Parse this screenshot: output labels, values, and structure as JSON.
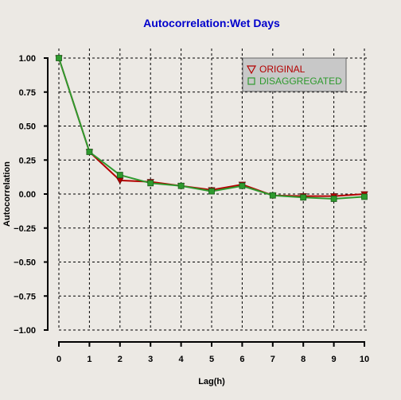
{
  "chart_data": {
    "type": "line",
    "title": "Autocorrelation:Wet Days",
    "xlabel": "Lag(h)",
    "ylabel": "Autocorrelation",
    "x": [
      0,
      1,
      2,
      3,
      4,
      5,
      6,
      7,
      8,
      9,
      10
    ],
    "xticks": [
      "0",
      "1",
      "2",
      "3",
      "4",
      "5",
      "6",
      "7",
      "8",
      "9",
      "10"
    ],
    "yticks": [
      "1.00",
      "0.75",
      "0.50",
      "0.25",
      "0.00",
      "−0.25",
      "−0.50",
      "−0.75",
      "−1.00"
    ],
    "xlim": [
      0,
      10
    ],
    "ylim": [
      -1.0,
      1.0
    ],
    "grid": true,
    "legend_position": "top-right",
    "series": [
      {
        "name": "ORIGINAL",
        "color": "#b30000",
        "marker": "triangle-down",
        "values": [
          1.0,
          0.31,
          0.1,
          0.09,
          0.06,
          0.03,
          0.07,
          -0.01,
          -0.015,
          -0.015,
          0.0
        ]
      },
      {
        "name": "DISAGGREGATED",
        "color": "#2e9a2e",
        "marker": "square",
        "values": [
          1.0,
          0.31,
          0.14,
          0.08,
          0.06,
          0.02,
          0.06,
          -0.01,
          -0.025,
          -0.035,
          -0.02
        ]
      }
    ]
  },
  "colors": {
    "background": "#ece9e4",
    "title": "#0000cc",
    "legend_box": "#c8c8c8",
    "grid": "#000000"
  }
}
